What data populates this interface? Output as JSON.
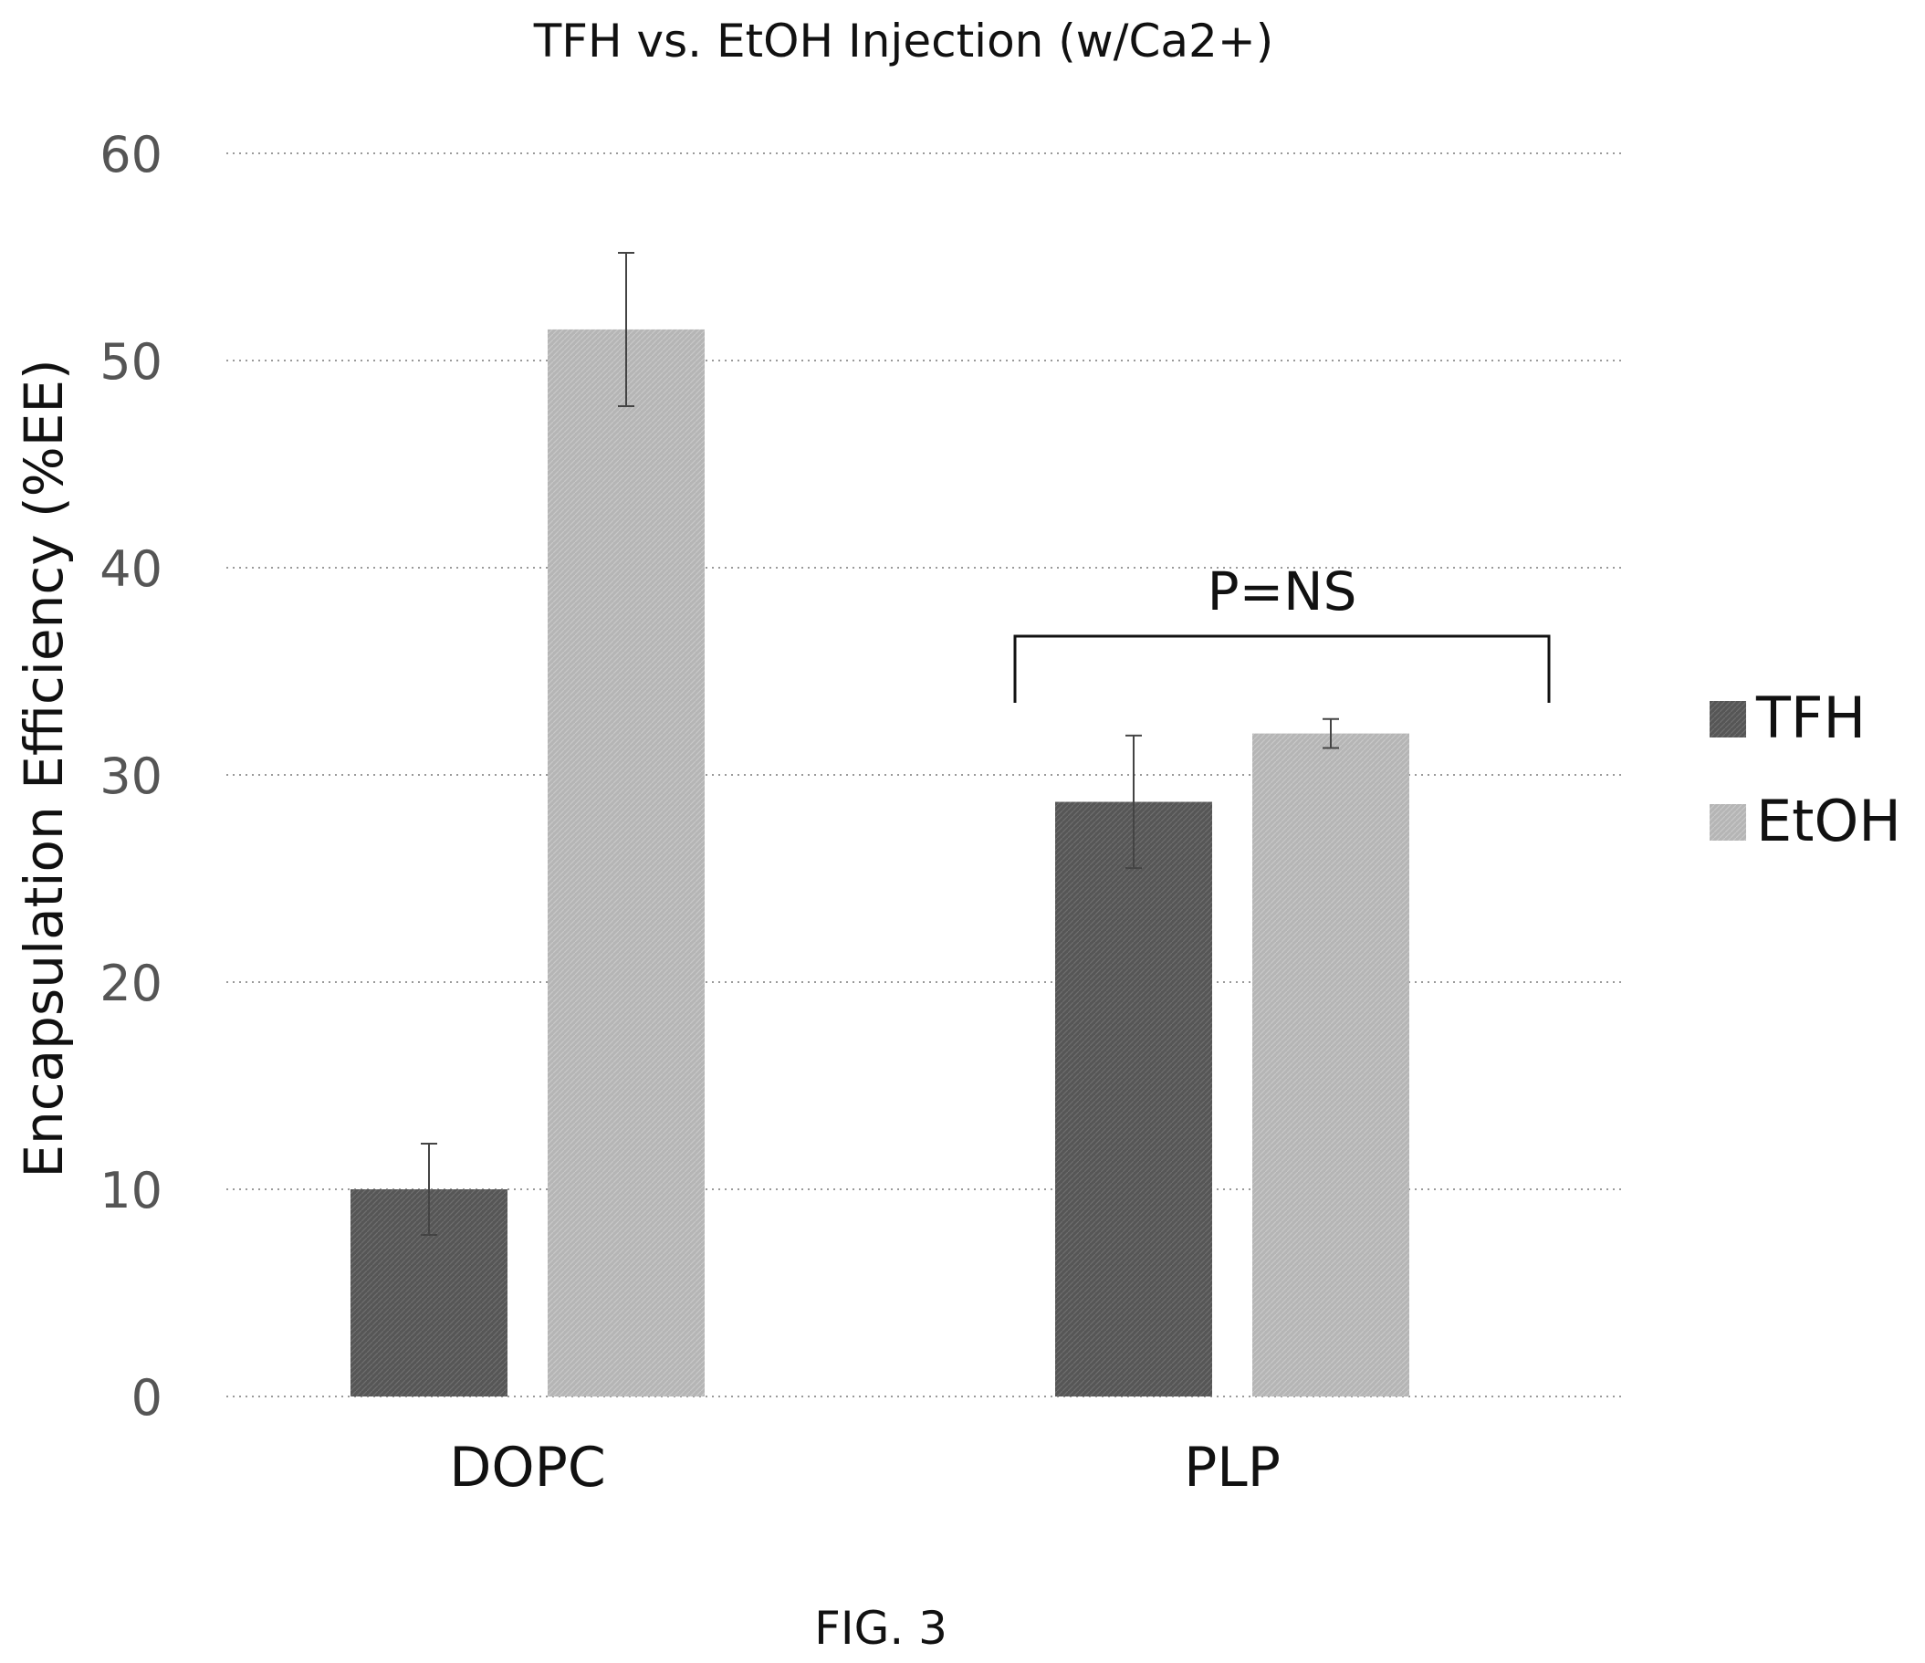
{
  "chart_data": {
    "type": "bar",
    "title": "TFH vs. EtOH Injection (w/Ca2+)",
    "xlabel": "",
    "ylabel": "Encapsulation Efficiency (%EE)",
    "categories": [
      "DOPC",
      "PLP"
    ],
    "series": [
      {
        "name": "TFH",
        "values": [
          10.0,
          28.7
        ],
        "error": [
          2.2,
          3.2
        ],
        "color": "#5a5a5a"
      },
      {
        "name": "EtOH",
        "values": [
          51.5,
          32.0
        ],
        "error": [
          3.7,
          0.7
        ],
        "color": "#b9b9b9"
      }
    ],
    "ylim": [
      0,
      60
    ],
    "yticks": [
      0,
      10,
      20,
      30,
      40,
      50,
      60
    ],
    "grid": true,
    "legend": "right",
    "annotations": [
      {
        "text": "P=NS",
        "spans": "PLP"
      }
    ]
  },
  "figure_caption": "FIG.  3"
}
